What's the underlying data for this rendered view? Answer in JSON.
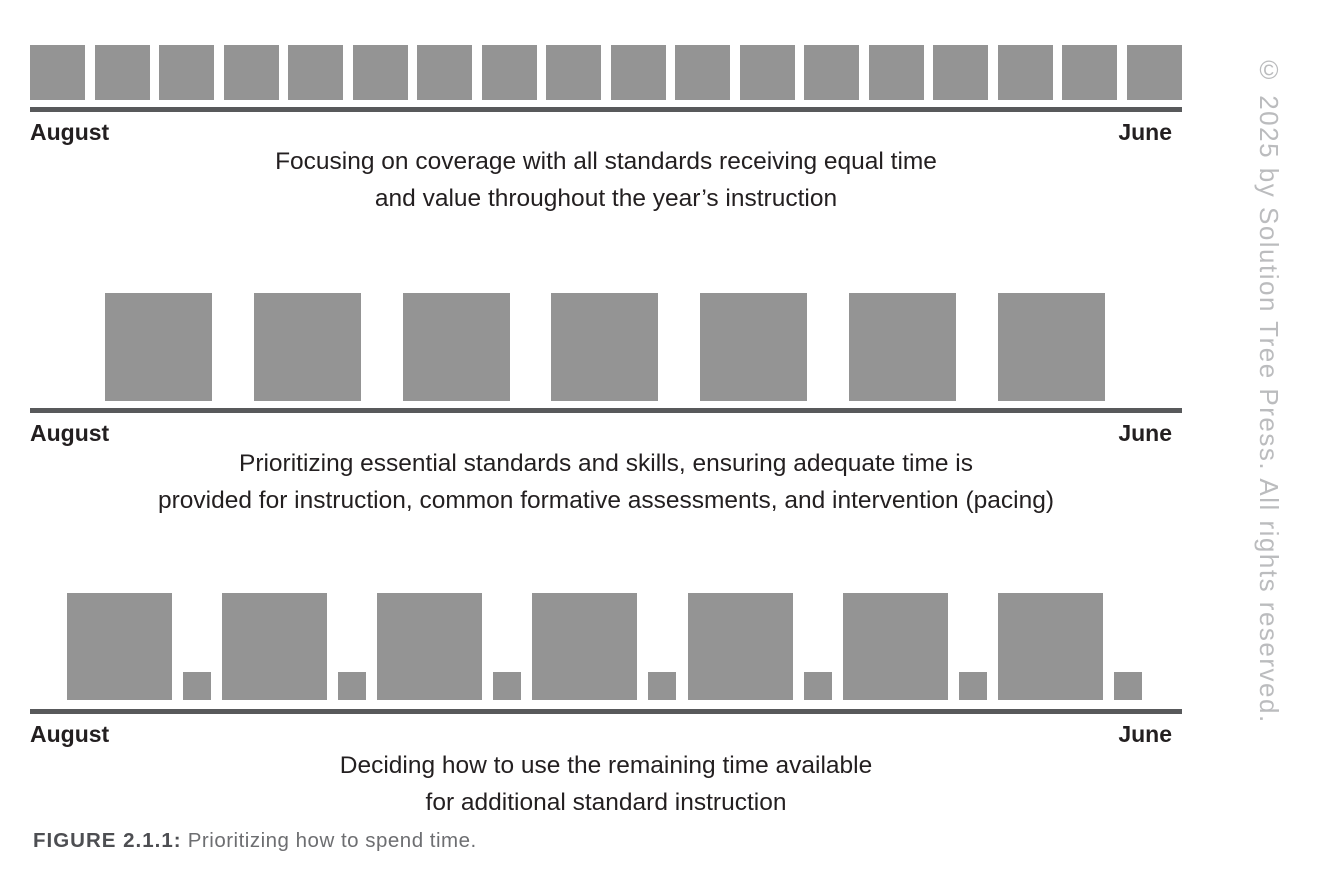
{
  "colors": {
    "block": "#949494",
    "axis": "#58595b",
    "ink": "#231f20",
    "caption_label": "#4d4e52",
    "caption_body": "#6d6e71",
    "watermark": "#bbbcbe"
  },
  "rows": [
    {
      "start_label": "August",
      "end_label": "June",
      "description_lines": [
        "Focusing on coverage with all standards receiving equal time",
        "and value throughout the year’s instruction"
      ],
      "blocks": [
        "medium",
        "medium",
        "medium",
        "medium",
        "medium",
        "medium",
        "medium",
        "medium",
        "medium",
        "medium",
        "medium",
        "medium",
        "medium",
        "medium",
        "medium",
        "medium",
        "medium",
        "medium"
      ]
    },
    {
      "start_label": "August",
      "end_label": "June",
      "description_lines": [
        "Prioritizing essential standards and skills, ensuring adequate time is",
        "provided for instruction, common formative assessments, and intervention (pacing)"
      ],
      "blocks": [
        "large",
        "large",
        "large",
        "large",
        "large",
        "large",
        "large"
      ]
    },
    {
      "start_label": "August",
      "end_label": "June",
      "description_lines": [
        "Deciding how to use the remaining time available",
        "for additional standard instruction"
      ],
      "blocks": [
        "tall",
        "small",
        "tall",
        "small",
        "tall",
        "small",
        "tall",
        "small",
        "tall",
        "small",
        "tall",
        "small",
        "tall",
        "small"
      ]
    }
  ],
  "figure": {
    "caption_label": "FIGURE 2.1.1:",
    "caption_text": " Prioritizing how to spend time."
  },
  "watermark_text": "© 2025 by Solution Tree Press. All rights reserved."
}
